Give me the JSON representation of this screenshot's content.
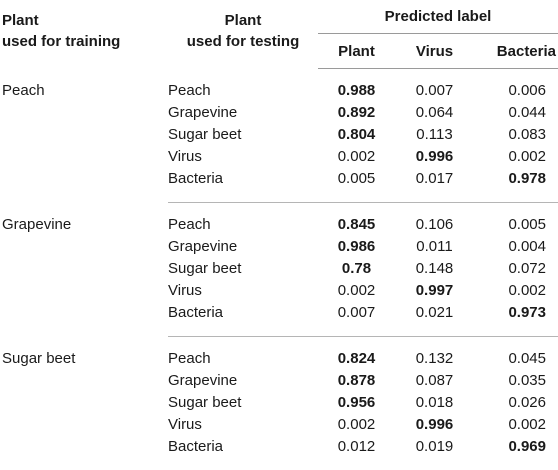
{
  "headers": {
    "train_line1": "Plant",
    "train_line2": "used for training",
    "test_line1": "Plant",
    "test_line2": "used for testing",
    "predicted": "Predicted label",
    "col_plant": "Plant",
    "col_virus": "Virus",
    "col_bacteria": "Bacteria"
  },
  "groups": [
    {
      "train": "Peach",
      "rows": [
        {
          "test": "Peach",
          "plant": "0.988",
          "virus": "0.007",
          "bacteria": "0.006",
          "bold": "plant"
        },
        {
          "test": "Grapevine",
          "plant": "0.892",
          "virus": "0.064",
          "bacteria": "0.044",
          "bold": "plant"
        },
        {
          "test": "Sugar beet",
          "plant": "0.804",
          "virus": "0.113",
          "bacteria": "0.083",
          "bold": "plant"
        },
        {
          "test": "Virus",
          "plant": "0.002",
          "virus": "0.996",
          "bacteria": "0.002",
          "bold": "virus"
        },
        {
          "test": "Bacteria",
          "plant": "0.005",
          "virus": "0.017",
          "bacteria": "0.978",
          "bold": "bacteria"
        }
      ]
    },
    {
      "train": "Grapevine",
      "rows": [
        {
          "test": "Peach",
          "plant": "0.845",
          "virus": "0.106",
          "bacteria": "0.005",
          "bold": "plant"
        },
        {
          "test": "Grapevine",
          "plant": "0.986",
          "virus": "0.011",
          "bacteria": "0.004",
          "bold": "plant"
        },
        {
          "test": "Sugar beet",
          "plant": "0.78",
          "virus": "0.148",
          "bacteria": "0.072",
          "bold": "plant"
        },
        {
          "test": "Virus",
          "plant": "0.002",
          "virus": "0.997",
          "bacteria": "0.002",
          "bold": "virus"
        },
        {
          "test": "Bacteria",
          "plant": "0.007",
          "virus": "0.021",
          "bacteria": "0.973",
          "bold": "bacteria"
        }
      ]
    },
    {
      "train": "Sugar beet",
      "rows": [
        {
          "test": "Peach",
          "plant": "0.824",
          "virus": "0.132",
          "bacteria": "0.045",
          "bold": "plant"
        },
        {
          "test": "Grapevine",
          "plant": "0.878",
          "virus": "0.087",
          "bacteria": "0.035",
          "bold": "plant"
        },
        {
          "test": "Sugar beet",
          "plant": "0.956",
          "virus": "0.018",
          "bacteria": "0.026",
          "bold": "plant"
        },
        {
          "test": "Virus",
          "plant": "0.002",
          "virus": "0.996",
          "bacteria": "0.002",
          "bold": "virus"
        },
        {
          "test": "Bacteria",
          "plant": "0.012",
          "virus": "0.019",
          "bacteria": "0.969",
          "bold": "bacteria"
        }
      ]
    }
  ]
}
